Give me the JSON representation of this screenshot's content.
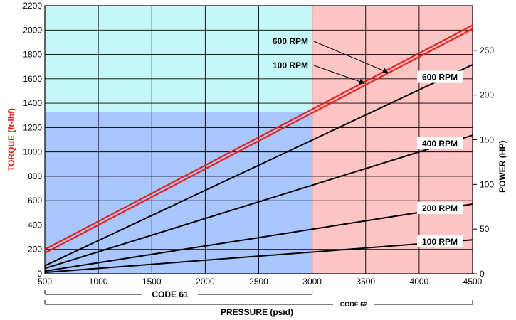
{
  "chart_data": {
    "type": "line",
    "title": "",
    "xlabel": "PRESSURE (psid)",
    "ylabel_left": "TORQUE (ft-lbf)",
    "ylabel_right": "POWER (HP)",
    "xlim": [
      500,
      4500
    ],
    "ylim_left": [
      0,
      2200
    ],
    "ylim_right": [
      0,
      300
    ],
    "x_ticks": [
      "500",
      "1000",
      "1500",
      "2000",
      "2500",
      "3000",
      "3500",
      "4000",
      "4500"
    ],
    "y_ticks_left": [
      "0",
      "200",
      "400",
      "600",
      "800",
      "1000",
      "1200",
      "1400",
      "1600",
      "1800",
      "2000",
      "2200"
    ],
    "y_ticks_right": [
      "0",
      "50",
      "100",
      "150",
      "200",
      "250"
    ],
    "grid": true,
    "regions": [
      {
        "name": "CODE 61",
        "x_range": [
          500,
          3000
        ],
        "color": "#a9c6ff"
      },
      {
        "name": "CODE 62",
        "x_range": [
          3000,
          4500
        ],
        "color": "#ffc4c4"
      }
    ],
    "upper_band": {
      "x_range": [
        500,
        3000
      ],
      "y_range": [
        1330,
        2200
      ],
      "color": "#c4f8f8"
    },
    "range_labels": {
      "code61": "CODE 61",
      "code62": "CODE 62"
    },
    "torque_series": [
      {
        "name": "600 RPM",
        "axis": "left",
        "color": "#e8201c",
        "x": [
          500,
          4500
        ],
        "y": [
          200,
          2040
        ]
      },
      {
        "name": "100 RPM",
        "axis": "left",
        "color": "#e8201c",
        "x": [
          500,
          4500
        ],
        "y": [
          170,
          2010
        ]
      }
    ],
    "power_series": [
      {
        "name": "600 RPM",
        "axis": "right",
        "color": "#000000",
        "x": [
          500,
          4500
        ],
        "y": [
          9,
          234
        ]
      },
      {
        "name": "400 RPM",
        "axis": "right",
        "color": "#000000",
        "x": [
          500,
          4500
        ],
        "y": [
          6,
          155
        ]
      },
      {
        "name": "200 RPM",
        "axis": "right",
        "color": "#000000",
        "x": [
          500,
          4500
        ],
        "y": [
          3,
          78
        ]
      },
      {
        "name": "100 RPM",
        "axis": "right",
        "color": "#000000",
        "x": [
          500,
          4500
        ],
        "y": [
          1.5,
          38
        ]
      }
    ]
  }
}
